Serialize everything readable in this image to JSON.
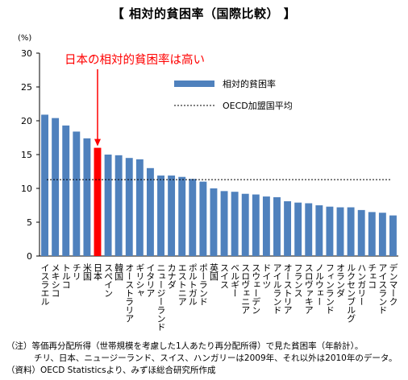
{
  "chart_data": {
    "type": "bar",
    "title": "【 相対的貧困率（国際比較） 】",
    "ylabel": "(%)",
    "ylim": [
      0,
      30
    ],
    "yticks": [
      0,
      5,
      10,
      15,
      20,
      25,
      30
    ],
    "grid": false,
    "legend_position": "top-right",
    "categories": [
      "イスラエル",
      "メキシコ",
      "トルコ",
      "チリ",
      "米国",
      "日本",
      "スペイン",
      "韓国",
      "オーストラリア",
      "ギリシャ",
      "イタリア",
      "ニュージーランド",
      "カナダ",
      "エストニア",
      "ポルトガル",
      "ポーランド",
      "英国",
      "スイス",
      "ベルギー",
      "スロヴェニア",
      "スウェーデン",
      "ドイツ",
      "アイルランド",
      "オーストリア",
      "フランス",
      "スロヴァキア",
      "ノルウェー",
      "フィンランド",
      "オランダ",
      "ルクセンブルグ",
      "ハンガリー",
      "チェコ",
      "アイスランド",
      "デンマーク"
    ],
    "series": [
      {
        "name": "相対的貧困率",
        "values": [
          20.9,
          20.4,
          19.3,
          18.4,
          17.4,
          16.0,
          15.0,
          14.9,
          14.5,
          14.3,
          13.0,
          11.9,
          11.9,
          11.7,
          11.4,
          11.0,
          10.0,
          9.6,
          9.5,
          9.2,
          9.1,
          8.8,
          8.7,
          8.1,
          7.9,
          7.8,
          7.5,
          7.3,
          7.2,
          7.2,
          6.8,
          6.5,
          6.4,
          6.0
        ]
      }
    ],
    "oecd_average": {
      "name": "OECD加盟国平均",
      "value": 11.3
    },
    "highlight": {
      "category": "日本",
      "label": "日本の相対的貧困率は高い"
    },
    "colors": {
      "bar": "#4f81bd",
      "highlight": "#ff0000",
      "annotation": "#ff0000"
    }
  },
  "notes": [
    "（注）等価再分配所得（世帯規模を考慮した1人あたり再分配所得）で見た貧困率（年齢計）。",
    "チリ、日本、ニュージーランド、スイス、ハンガリーは2009年、それ以外は2010年のデータ。",
    "（資料）OECD Statisticsより、みずほ総合研究所作成"
  ]
}
